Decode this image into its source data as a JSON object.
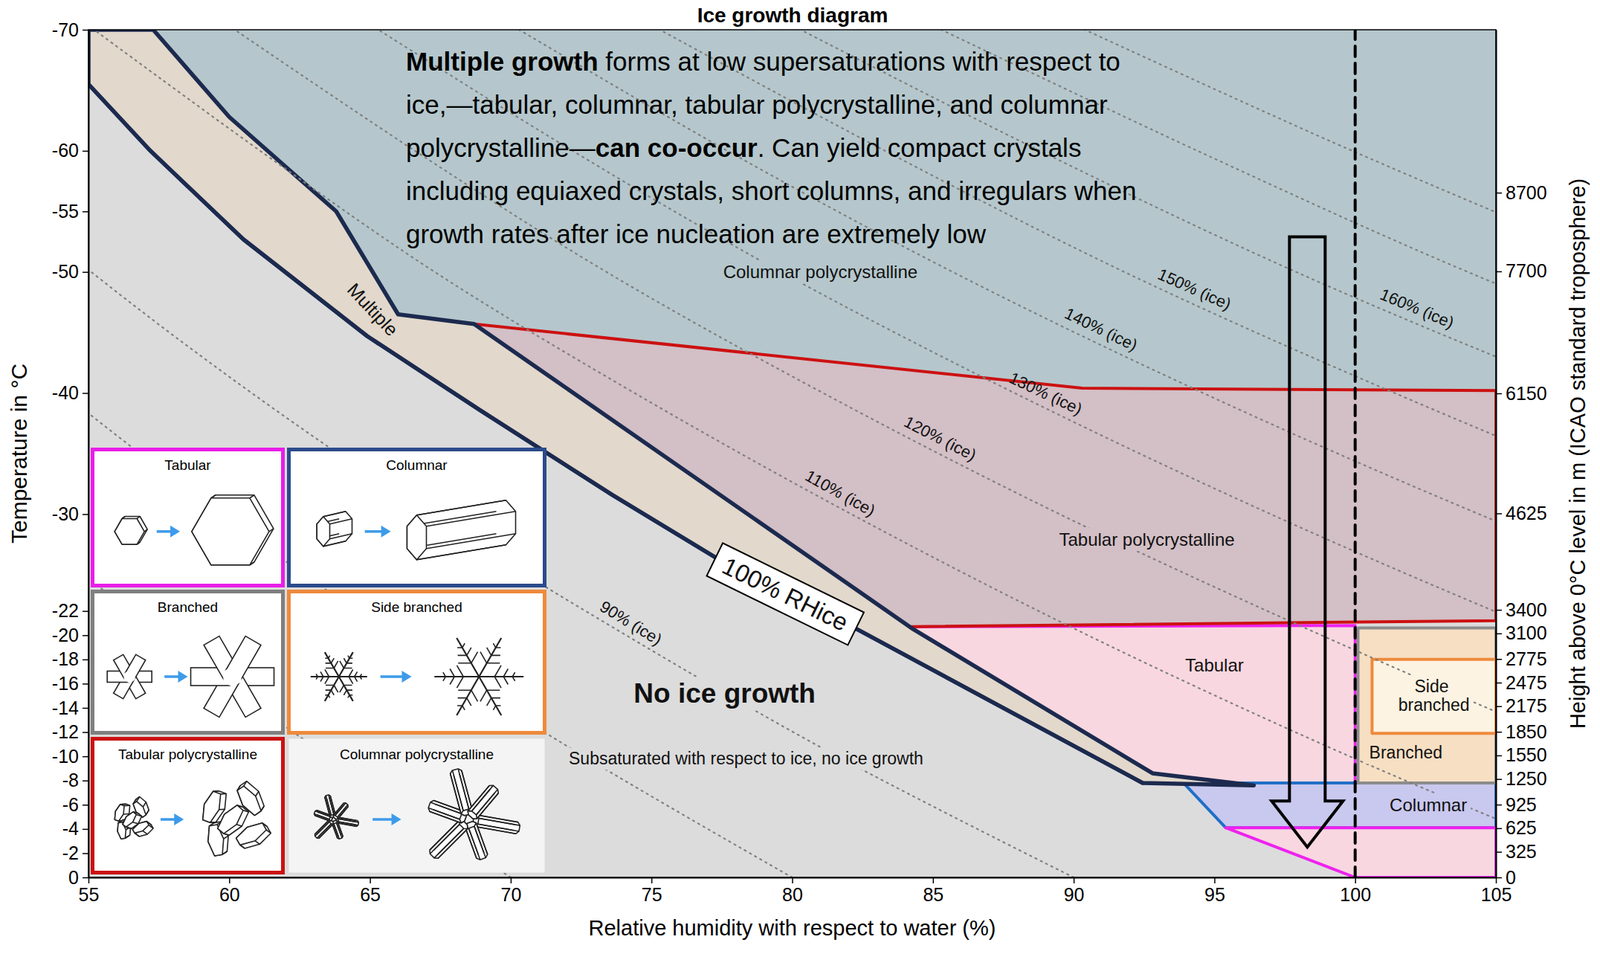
{
  "chart_data": {
    "type": "area",
    "title": "Ice growth diagram",
    "x_label": "Relative humidity with respect to water (%)",
    "y_label": "Temperature in °C",
    "y2_label": "Height above 0°C level in m (ICAO standard troposphere)",
    "xlim": [
      55,
      105
    ],
    "xticks": [
      55,
      60,
      65,
      70,
      75,
      80,
      85,
      90,
      95,
      100,
      105
    ],
    "ylim": [
      0,
      -70
    ],
    "yticks": [
      0,
      -2,
      -4,
      -6,
      -8,
      -10,
      -12,
      -14,
      -16,
      -18,
      -20,
      -22,
      -30,
      -40,
      -50,
      -55,
      -60,
      -70
    ],
    "y2lim": [
      0,
      10770
    ],
    "y2ticks": [
      0,
      325,
      625,
      925,
      1250,
      1550,
      1850,
      2175,
      2475,
      2775,
      3100,
      3400,
      4625,
      6150,
      7700,
      8700
    ],
    "grid": false,
    "series": [
      {
        "name": "No ice growth",
        "type": "area",
        "color": "#dcdcdc",
        "x": [
          55,
          105,
          105,
          55
        ],
        "values": [
          0,
          0,
          -70,
          -70
        ]
      },
      {
        "name": "Columnar polycrystalline",
        "type": "area",
        "color": "#b5c7cc",
        "x": [
          57.3,
          105,
          105,
          90.3,
          68.7,
          66.0,
          63.8,
          60.0
        ],
        "values": [
          -70,
          -70,
          -40.2,
          -40.4,
          -45.7,
          -46.5,
          -55.0,
          -62.8
        ]
      },
      {
        "name": "Tabular",
        "type": "area",
        "color": "#f8d7e0",
        "x": [
          83.8,
          100,
          100,
          96.4,
          92.8,
          84.3
        ],
        "values": [
          -20.7,
          -20.8,
          -7.8,
          -7.6,
          -8.6,
          -20.5
        ]
      },
      {
        "name": "Columnar",
        "type": "area",
        "color": "#c9c8ee",
        "x": [
          93.9,
          105,
          105,
          95.4
        ],
        "values": [
          -7.8,
          -7.8,
          -4.1,
          -4.1
        ]
      },
      {
        "type": "area",
        "color": "#f8d7e0",
        "x": [
          95.4,
          105,
          105,
          100
        ],
        "values": [
          -4.1,
          -4.1,
          0,
          0
        ]
      },
      {
        "name": "Branched",
        "type": "area",
        "color": "#f7dfc3",
        "x": [
          100.1,
          105,
          105,
          100.1
        ],
        "values": [
          -20.6,
          -20.6,
          -7.8,
          -7.8
        ]
      },
      {
        "name": "Side branched",
        "type": "area",
        "color": "#fdf3e2",
        "x": [
          100.6,
          105,
          105,
          100.6
        ],
        "values": [
          -18.0,
          -18.0,
          -11.9,
          -11.9
        ]
      },
      {
        "name": "Tabular polycrystalline",
        "type": "area",
        "color": "#d3bfc6",
        "x": [
          68.7,
          90.3,
          105,
          105,
          83.8
        ],
        "values": [
          -45.7,
          -40.4,
          -40.2,
          -21.2,
          -20.7
        ]
      },
      {
        "name": "Multiple",
        "type": "area",
        "color": "#e2d8cb",
        "x": [
          55,
          57.3,
          60.0,
          63.8,
          66.0,
          68.7,
          84.3,
          92.8,
          96.4,
          92.45,
          82.3,
          78.0,
          73.6,
          68.9,
          64.9,
          60.5,
          57.2,
          55.0
        ],
        "values": [
          -70,
          -70,
          -62.8,
          -55.0,
          -46.5,
          -45.7,
          -20.5,
          -8.6,
          -7.6,
          -7.8,
          -20.5,
          -25.4,
          -31.6,
          -38.6,
          -44.7,
          -52.7,
          -60.0,
          -65.5
        ]
      },
      {
        "name": "100% RHice",
        "type": "line",
        "line_style": "solid",
        "color": "#1c2a4f",
        "x": [
          55.0,
          57.2,
          60.5,
          64.9,
          68.9,
          73.6,
          78.0,
          82.3,
          92.45
        ],
        "values": [
          -65.5,
          -60.0,
          -52.7,
          -44.7,
          -38.6,
          -31.6,
          -25.4,
          -20.5,
          -7.8
        ]
      },
      {
        "type": "line",
        "line_style": "dotted",
        "color": "#808080",
        "x": [
          70,
          63.5,
          57.6,
          52.2,
          47.3,
          42.8,
          38.9,
          35.1
        ],
        "values": [
          0,
          -10,
          -20,
          -30,
          -40,
          -50,
          -60,
          -70
        ]
      },
      {
        "type": "line",
        "line_style": "dotted",
        "color": "#808080",
        "x": [
          80,
          72.6,
          65.8,
          59.7,
          54.1,
          49.0,
          44.4,
          40.2
        ],
        "values": [
          0,
          -10,
          -20,
          -30,
          -40,
          -50,
          -60,
          -70
        ]
      },
      {
        "name": "90% (ice)",
        "type": "line",
        "line_style": "dotted",
        "color": "#808080",
        "x": [
          90,
          81.6,
          74.1,
          67.1,
          60.8,
          55.1,
          50.0,
          45.2
        ],
        "values": [
          0,
          -10,
          -20,
          -30,
          -40,
          -50,
          -60,
          -70
        ]
      },
      {
        "name": "110% (ice)",
        "type": "line",
        "line_style": "dotted",
        "color": "#808080",
        "x": [
          110,
          99.8,
          90.5,
          82.1,
          74.4,
          67.3,
          61.1,
          55.2
        ],
        "values": [
          0,
          -10,
          -20,
          -30,
          -40,
          -50,
          -60,
          -70
        ]
      },
      {
        "name": "120% (ice)",
        "type": "line",
        "line_style": "dotted",
        "color": "#808080",
        "x": [
          120,
          108.8,
          98.8,
          89.5,
          81.1,
          73.4,
          66.6,
          60.2
        ],
        "values": [
          0,
          -10,
          -20,
          -30,
          -40,
          -50,
          -60,
          -70
        ]
      },
      {
        "name": "130% (ice)",
        "type": "line",
        "line_style": "dotted",
        "color": "#808080",
        "x": [
          130,
          117.9,
          107.0,
          97.0,
          87.9,
          79.6,
          72.2,
          65.3
        ],
        "values": [
          0,
          -10,
          -20,
          -30,
          -40,
          -50,
          -60,
          -70
        ]
      },
      {
        "name": "140% (ice)",
        "type": "line",
        "line_style": "dotted",
        "color": "#808080",
        "x": [
          140,
          127.0,
          115.2,
          104.4,
          94.6,
          85.7,
          77.7,
          70.3
        ],
        "values": [
          0,
          -10,
          -20,
          -30,
          -40,
          -50,
          -60,
          -70
        ]
      },
      {
        "name": "150% (ice)",
        "type": "line",
        "line_style": "dotted",
        "color": "#808080",
        "x": [
          150,
          136.1,
          123.5,
          111.9,
          101.4,
          91.8,
          83.3,
          75.3
        ],
        "values": [
          0,
          -10,
          -20,
          -30,
          -40,
          -50,
          -60,
          -70
        ]
      },
      {
        "name": "160% (ice)",
        "type": "line",
        "line_style": "dotted",
        "color": "#808080",
        "x": [
          160,
          145.1,
          131.7,
          119.4,
          108.2,
          97.9,
          88.8,
          80.3
        ],
        "values": [
          0,
          -10,
          -20,
          -30,
          -40,
          -50,
          -60,
          -70
        ]
      },
      {
        "type": "line",
        "line_style": "dotted",
        "color": "#808080",
        "x": [
          170,
          154.2,
          139.9,
          126.8,
          114.9,
          104.0,
          94.4,
          85.3
        ],
        "values": [
          0,
          -10,
          -20,
          -30,
          -40,
          -50,
          -60,
          -70
        ]
      },
      {
        "type": "line",
        "line_style": "dotted",
        "color": "#808080",
        "x": [
          180,
          163.3,
          148.1,
          134.3,
          121.7,
          110.2,
          99.9,
          90.4
        ],
        "values": [
          0,
          -10,
          -20,
          -30,
          -40,
          -50,
          -60,
          -70
        ]
      },
      {
        "type": "line",
        "line_style": "dashed",
        "color": "#000000",
        "x": [
          100,
          100
        ],
        "values": [
          0,
          -70
        ]
      }
    ],
    "annotations": [
      "Subsaturated with respect to ice, no ice growth"
    ],
    "text_box": [
      [
        {
          "text": "Multiple growth",
          "bold": true
        },
        {
          "text": " forms at low supersaturations with respect to"
        }
      ],
      [
        {
          "text": "ice,—tabular, columnar, tabular polycrystalline, and columnar"
        }
      ],
      [
        {
          "text": "polycrystalline—"
        },
        {
          "text": "can co-occur",
          "bold": true
        },
        {
          "text": ". Can yield compact crystals"
        }
      ],
      [
        {
          "text": "including equiaxed crystals, short columns, and irregulars when"
        }
      ],
      [
        {
          "text": "growth rates after ice nucleation are extremely low"
        }
      ]
    ]
  },
  "inset_titles": [
    "Tabular",
    "Columnar",
    "Branched",
    "Side branched",
    "Tabular polycrystalline",
    "Columnar polycrystalline"
  ]
}
